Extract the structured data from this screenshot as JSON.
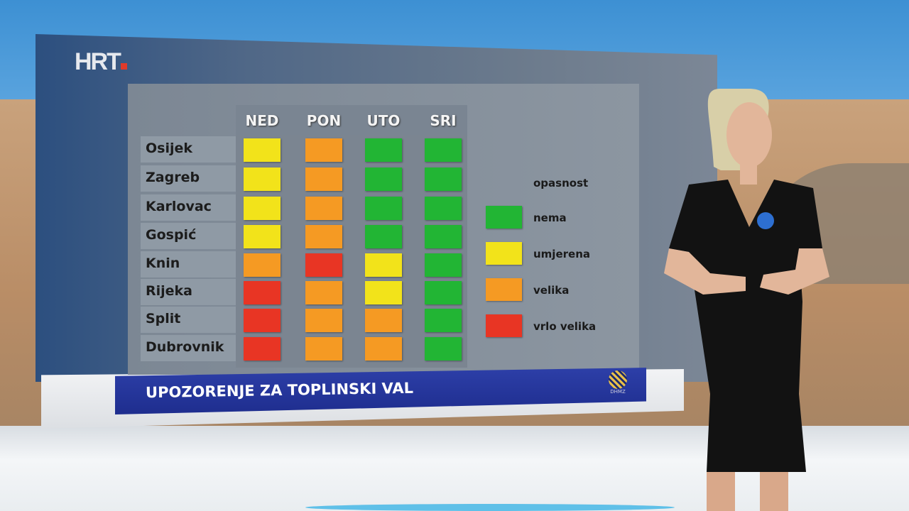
{
  "broadcaster_logo": "HRT",
  "days": [
    "NED",
    "PON",
    "UTO",
    "SRI"
  ],
  "cities": [
    "Osijek",
    "Zagreb",
    "Karlovac",
    "Gospić",
    "Knin",
    "Rijeka",
    "Split",
    "Dubrovnik"
  ],
  "levels": [
    [
      "umjerena",
      "velika",
      "nema",
      "nema"
    ],
    [
      "umjerena",
      "velika",
      "nema",
      "nema"
    ],
    [
      "umjerena",
      "velika",
      "nema",
      "nema"
    ],
    [
      "umjerena",
      "velika",
      "nema",
      "nema"
    ],
    [
      "velika",
      "vrlo velika",
      "umjerena",
      "nema"
    ],
    [
      "vrlo velika",
      "velika",
      "umjerena",
      "nema"
    ],
    [
      "vrlo velika",
      "velika",
      "velika",
      "nema"
    ],
    [
      "vrlo velika",
      "velika",
      "velika",
      "nema"
    ]
  ],
  "legend": {
    "title": "opasnost",
    "items": [
      {
        "label": "nema",
        "color": "#22b534"
      },
      {
        "label": "umjerena",
        "color": "#f2e31a"
      },
      {
        "label": "velika",
        "color": "#f59a23"
      },
      {
        "label": "vrlo velika",
        "color": "#e83524"
      }
    ]
  },
  "banner": {
    "title": "UPOZORENJE ZA TOPLINSKI VAL",
    "logo": "DHMZ"
  }
}
